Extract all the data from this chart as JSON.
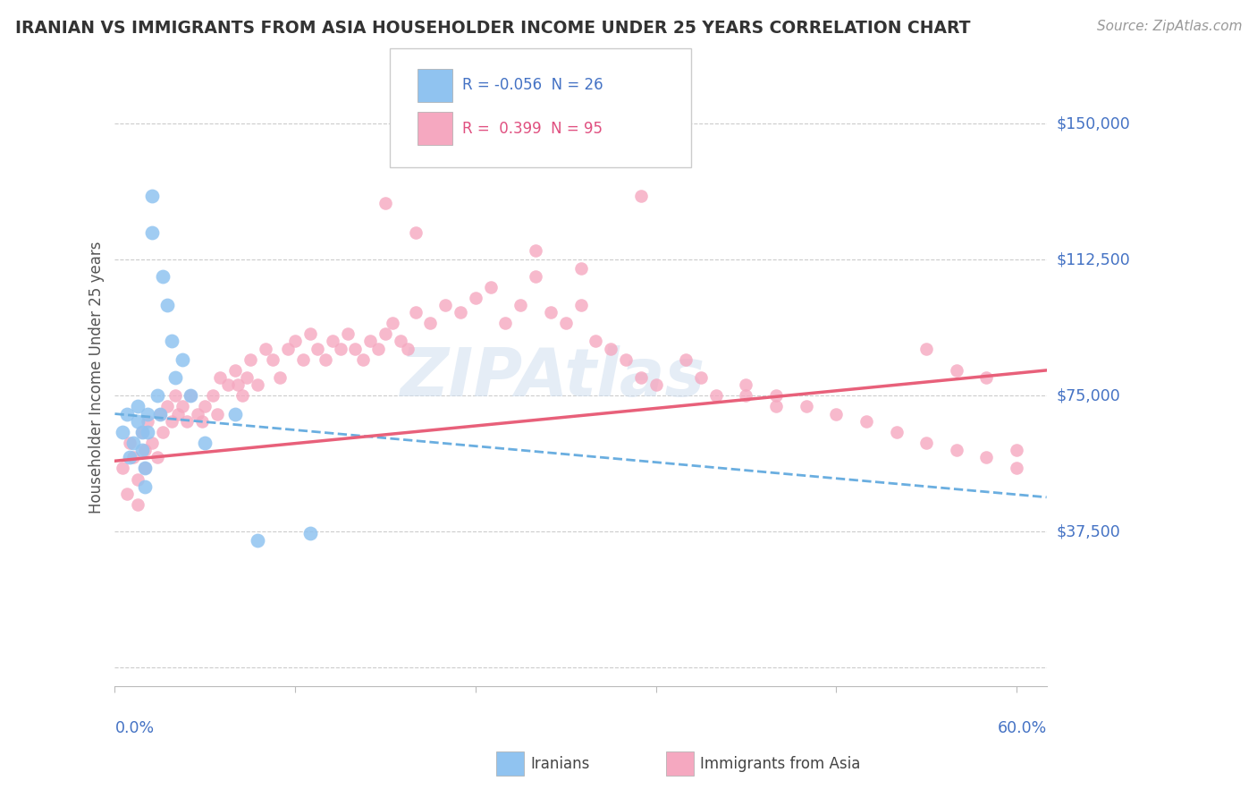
{
  "title": "IRANIAN VS IMMIGRANTS FROM ASIA HOUSEHOLDER INCOME UNDER 25 YEARS CORRELATION CHART",
  "source": "Source: ZipAtlas.com",
  "ylabel": "Householder Income Under 25 years",
  "ytick_values": [
    0,
    37500,
    75000,
    112500,
    150000
  ],
  "ytick_right_labels": [
    "$150,000",
    "$112,500",
    "$75,000",
    "$37,500"
  ],
  "ytick_right_values": [
    150000,
    112500,
    75000,
    37500
  ],
  "ylim": [
    -5000,
    165000
  ],
  "xlim": [
    0.0,
    0.62
  ],
  "iranian_R": -0.056,
  "iranian_N": 26,
  "asia_R": 0.399,
  "asia_N": 95,
  "color_iranian": "#90C3F0",
  "color_asia": "#F5A8C0",
  "color_iranian_line": "#6AAEE0",
  "color_asia_line": "#E8607A",
  "color_blue_text": "#4472C4",
  "color_pink_text": "#E05080",
  "background_color": "#FFFFFF",
  "grid_color": "#CCCCCC",
  "watermark_text": "ZIPAtlas",
  "iranians_x": [
    0.005,
    0.008,
    0.01,
    0.012,
    0.015,
    0.015,
    0.018,
    0.018,
    0.02,
    0.02,
    0.022,
    0.022,
    0.025,
    0.025,
    0.028,
    0.03,
    0.032,
    0.035,
    0.038,
    0.04,
    0.045,
    0.05,
    0.06,
    0.08,
    0.095,
    0.13
  ],
  "iranians_y": [
    65000,
    70000,
    58000,
    62000,
    72000,
    68000,
    65000,
    60000,
    55000,
    50000,
    70000,
    65000,
    130000,
    120000,
    75000,
    70000,
    108000,
    100000,
    90000,
    80000,
    85000,
    75000,
    62000,
    70000,
    35000,
    37000
  ],
  "asia_x": [
    0.005,
    0.008,
    0.01,
    0.012,
    0.015,
    0.015,
    0.018,
    0.02,
    0.02,
    0.022,
    0.025,
    0.028,
    0.03,
    0.032,
    0.035,
    0.038,
    0.04,
    0.042,
    0.045,
    0.048,
    0.05,
    0.055,
    0.058,
    0.06,
    0.065,
    0.068,
    0.07,
    0.075,
    0.08,
    0.082,
    0.085,
    0.088,
    0.09,
    0.095,
    0.1,
    0.105,
    0.11,
    0.115,
    0.12,
    0.125,
    0.13,
    0.135,
    0.14,
    0.145,
    0.15,
    0.155,
    0.16,
    0.165,
    0.17,
    0.175,
    0.18,
    0.185,
    0.19,
    0.195,
    0.2,
    0.21,
    0.22,
    0.23,
    0.24,
    0.25,
    0.26,
    0.27,
    0.28,
    0.29,
    0.3,
    0.31,
    0.32,
    0.33,
    0.34,
    0.35,
    0.36,
    0.38,
    0.39,
    0.4,
    0.42,
    0.44,
    0.46,
    0.48,
    0.5,
    0.52,
    0.54,
    0.56,
    0.58,
    0.6,
    0.18,
    0.2,
    0.28,
    0.31,
    0.35,
    0.54,
    0.56,
    0.58,
    0.42,
    0.44,
    0.6
  ],
  "asia_y": [
    55000,
    48000,
    62000,
    58000,
    52000,
    45000,
    65000,
    60000,
    55000,
    68000,
    62000,
    58000,
    70000,
    65000,
    72000,
    68000,
    75000,
    70000,
    72000,
    68000,
    75000,
    70000,
    68000,
    72000,
    75000,
    70000,
    80000,
    78000,
    82000,
    78000,
    75000,
    80000,
    85000,
    78000,
    88000,
    85000,
    80000,
    88000,
    90000,
    85000,
    92000,
    88000,
    85000,
    90000,
    88000,
    92000,
    88000,
    85000,
    90000,
    88000,
    92000,
    95000,
    90000,
    88000,
    98000,
    95000,
    100000,
    98000,
    102000,
    105000,
    95000,
    100000,
    108000,
    98000,
    95000,
    100000,
    90000,
    88000,
    85000,
    80000,
    78000,
    85000,
    80000,
    75000,
    78000,
    75000,
    72000,
    70000,
    68000,
    65000,
    62000,
    60000,
    58000,
    55000,
    128000,
    120000,
    115000,
    110000,
    130000,
    88000,
    82000,
    80000,
    75000,
    72000,
    60000
  ]
}
